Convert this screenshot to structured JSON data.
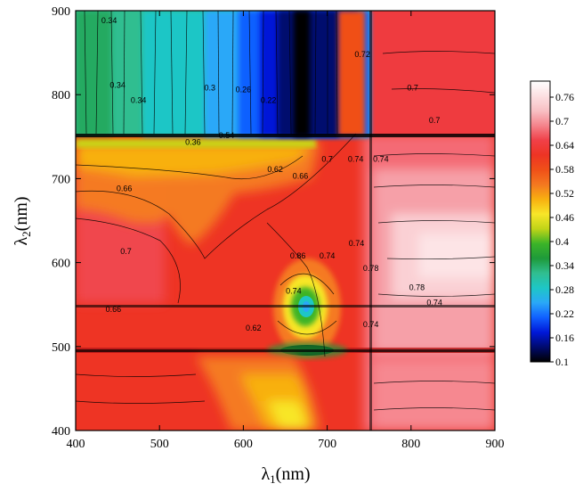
{
  "chart_data": {
    "type": "heatmap",
    "title": "",
    "xlabel": {
      "main": "λ",
      "sub": "1",
      "unit": "(nm)"
    },
    "ylabel": {
      "main": "λ",
      "sub": "2",
      "unit": "(nm)"
    },
    "xlim": [
      400,
      900
    ],
    "ylim": [
      400,
      900
    ],
    "x_ticks": [
      "400",
      "500",
      "600",
      "700",
      "800",
      "900"
    ],
    "y_ticks": [
      "400",
      "500",
      "600",
      "700",
      "800",
      "900"
    ],
    "colorbar": {
      "range": [
        0.1,
        0.8
      ],
      "ticks": [
        "0.1",
        "0.16",
        "0.22",
        "0.28",
        "0.34",
        "0.4",
        "0.46",
        "0.52",
        "0.58",
        "0.64",
        "0.7",
        "0.76"
      ],
      "colors": [
        "#000000",
        "#000a6e",
        "#0018d8",
        "#1060ff",
        "#2aa8f8",
        "#1ec6c6",
        "#30be90",
        "#1e9a3a",
        "#3cb428",
        "#c0d418",
        "#f8e628",
        "#f8b010",
        "#f47820",
        "#f05018",
        "#ee3424",
        "#f04048",
        "#f4848c",
        "#f8c0c4",
        "#fce0e2",
        "#ffffff"
      ]
    },
    "grid": false,
    "legend": "right",
    "contour_labels": [
      {
        "text": "0.34",
        "x": 440,
        "y": 885
      },
      {
        "text": "0.34",
        "x": 450,
        "y": 808
      },
      {
        "text": "0.34",
        "x": 475,
        "y": 790
      },
      {
        "text": "0.3",
        "x": 560,
        "y": 805
      },
      {
        "text": "0.26",
        "x": 600,
        "y": 803
      },
      {
        "text": "0.22",
        "x": 630,
        "y": 790
      },
      {
        "text": "0.36",
        "x": 540,
        "y": 740
      },
      {
        "text": "0.54",
        "x": 580,
        "y": 748
      },
      {
        "text": "0.62",
        "x": 638,
        "y": 708
      },
      {
        "text": "0.66",
        "x": 668,
        "y": 700
      },
      {
        "text": "0.7",
        "x": 700,
        "y": 720
      },
      {
        "text": "0.74",
        "x": 734,
        "y": 720
      },
      {
        "text": "0.74",
        "x": 764,
        "y": 720
      },
      {
        "text": "0.72",
        "x": 742,
        "y": 845
      },
      {
        "text": "0.7",
        "x": 802,
        "y": 805
      },
      {
        "text": "0.7",
        "x": 828,
        "y": 766
      },
      {
        "text": "0.66",
        "x": 458,
        "y": 685
      },
      {
        "text": "0.7",
        "x": 460,
        "y": 610
      },
      {
        "text": "0.66",
        "x": 445,
        "y": 541
      },
      {
        "text": "0.86",
        "x": 665,
        "y": 605
      },
      {
        "text": "0.74",
        "x": 700,
        "y": 605
      },
      {
        "text": "0.74",
        "x": 735,
        "y": 620
      },
      {
        "text": "0.78",
        "x": 752,
        "y": 590
      },
      {
        "text": "0.78",
        "x": 807,
        "y": 567
      },
      {
        "text": "0.74",
        "x": 828,
        "y": 549
      },
      {
        "text": "0.74",
        "x": 660,
        "y": 563
      },
      {
        "text": "0.62",
        "x": 612,
        "y": 519
      },
      {
        "text": "0.74",
        "x": 752,
        "y": 523
      }
    ]
  }
}
